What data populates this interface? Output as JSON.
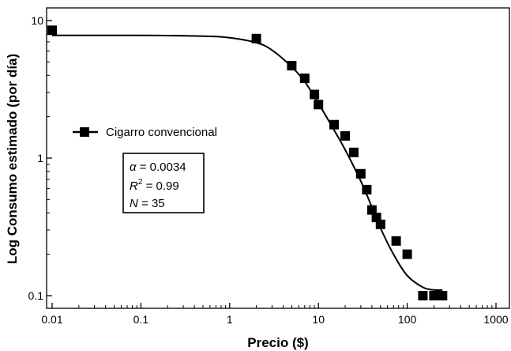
{
  "chart_data": {
    "type": "scatter",
    "xlabel": "Precio ($)",
    "ylabel": "Log Consumo estimado (por día)",
    "xscale": "log",
    "yscale": "log",
    "xlim": [
      0.01,
      1000
    ],
    "ylim": [
      0.09,
      11
    ],
    "x_ticks": [
      "0.01",
      "0.1",
      "1",
      "10",
      "100",
      "1000"
    ],
    "y_ticks": [
      "0.1",
      "1",
      "10"
    ],
    "grid": false,
    "legend_position": "upper-left",
    "series": [
      {
        "name": "Cigarro convencional",
        "marker": "square",
        "color": "#000000",
        "points": [
          {
            "x": 0.01,
            "y": 8.5
          },
          {
            "x": 2,
            "y": 7.4
          },
          {
            "x": 5,
            "y": 4.7
          },
          {
            "x": 7,
            "y": 3.8
          },
          {
            "x": 9,
            "y": 2.9
          },
          {
            "x": 10,
            "y": 2.45
          },
          {
            "x": 15,
            "y": 1.75
          },
          {
            "x": 20,
            "y": 1.45
          },
          {
            "x": 25,
            "y": 1.1
          },
          {
            "x": 30,
            "y": 0.77
          },
          {
            "x": 35,
            "y": 0.59
          },
          {
            "x": 40,
            "y": 0.42
          },
          {
            "x": 45,
            "y": 0.37
          },
          {
            "x": 50,
            "y": 0.33
          },
          {
            "x": 75,
            "y": 0.25
          },
          {
            "x": 100,
            "y": 0.2
          },
          {
            "x": 150,
            "y": 0.1
          },
          {
            "x": 200,
            "y": 0.1
          },
          {
            "x": 250,
            "y": 0.1
          }
        ]
      }
    ],
    "fit_curve": {
      "color": "#000000",
      "points": [
        {
          "x": 0.01,
          "y": 7.8
        },
        {
          "x": 0.1,
          "y": 7.8
        },
        {
          "x": 0.5,
          "y": 7.7
        },
        {
          "x": 1,
          "y": 7.5
        },
        {
          "x": 2,
          "y": 6.9
        },
        {
          "x": 3,
          "y": 6.1
        },
        {
          "x": 5,
          "y": 4.6
        },
        {
          "x": 7,
          "y": 3.6
        },
        {
          "x": 10,
          "y": 2.5
        },
        {
          "x": 15,
          "y": 1.6
        },
        {
          "x": 20,
          "y": 1.15
        },
        {
          "x": 30,
          "y": 0.68
        },
        {
          "x": 40,
          "y": 0.44
        },
        {
          "x": 50,
          "y": 0.31
        },
        {
          "x": 70,
          "y": 0.2
        },
        {
          "x": 100,
          "y": 0.14
        },
        {
          "x": 150,
          "y": 0.115
        },
        {
          "x": 200,
          "y": 0.11
        },
        {
          "x": 250,
          "y": 0.11
        }
      ]
    },
    "stats_box": {
      "alpha_symbol": "α",
      "alpha_value": " = 0.0034",
      "r_symbol": "R",
      "r_sup": "2",
      "r_value": " = 0.99",
      "n_symbol": "N",
      "n_value": " = 35"
    }
  }
}
